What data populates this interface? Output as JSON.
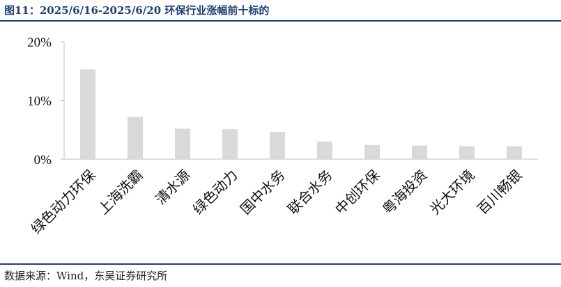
{
  "header": {
    "title": "图11：2025/6/16-2025/6/20 环保行业涨幅前十标的"
  },
  "footer": {
    "source": "数据来源：Wind，东吴证券研究所"
  },
  "colors": {
    "bar": "#d9d9d9",
    "axis": "#bfbfbf",
    "rule": "#1f3f73"
  },
  "chart_data": {
    "type": "bar",
    "categories": [
      "绿色动力环保",
      "上海洗霸",
      "清水源",
      "绿色动力",
      "国中水务",
      "联合水务",
      "中创环保",
      "粤海投资",
      "光大环境",
      "百川畅银"
    ],
    "values": [
      15.3,
      7.2,
      5.2,
      5.1,
      4.6,
      3.0,
      2.4,
      2.3,
      2.2,
      2.2
    ],
    "ylim": [
      0,
      20
    ],
    "yticks": [
      0,
      10,
      20
    ],
    "ytick_labels": [
      "0%",
      "10%",
      "20%"
    ],
    "grid": false
  }
}
